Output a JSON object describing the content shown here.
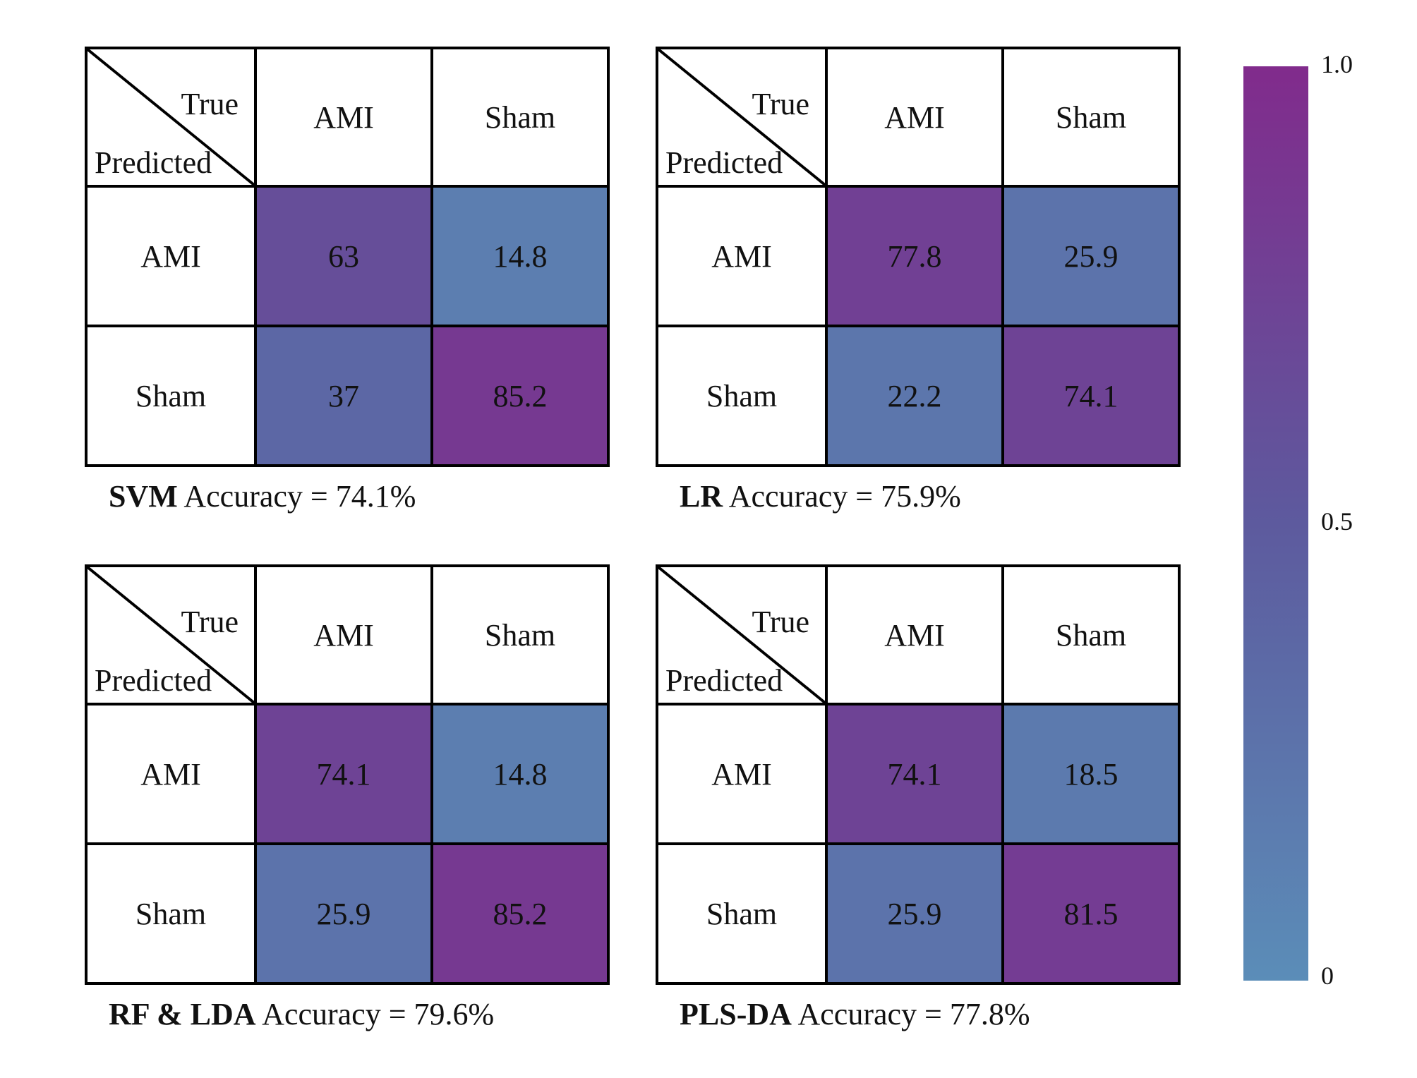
{
  "chart_data": [
    {
      "type": "heatmap",
      "model": "SVM",
      "accuracy_label": "Accuracy = 74.1%",
      "corner_true": "True",
      "corner_predicted": "Predicted",
      "columns": [
        "AMI",
        "Sham"
      ],
      "rows": [
        "AMI",
        "Sham"
      ],
      "values": [
        [
          "63",
          "14.8"
        ],
        [
          "37",
          "85.2"
        ]
      ]
    },
    {
      "type": "heatmap",
      "model": "LR",
      "accuracy_label": "Accuracy = 75.9%",
      "corner_true": "True",
      "corner_predicted": "Predicted",
      "columns": [
        "AMI",
        "Sham"
      ],
      "rows": [
        "AMI",
        "Sham"
      ],
      "values": [
        [
          "77.8",
          "25.9"
        ],
        [
          "22.2",
          "74.1"
        ]
      ]
    },
    {
      "type": "heatmap",
      "model": "RF & LDA",
      "accuracy_label": "Accuracy = 79.6%",
      "corner_true": "True",
      "corner_predicted": "Predicted",
      "columns": [
        "AMI",
        "Sham"
      ],
      "rows": [
        "AMI",
        "Sham"
      ],
      "values": [
        [
          "74.1",
          "14.8"
        ],
        [
          "25.9",
          "85.2"
        ]
      ]
    },
    {
      "type": "heatmap",
      "model": "PLS-DA",
      "accuracy_label": "Accuracy = 77.8%",
      "corner_true": "True",
      "corner_predicted": "Predicted",
      "columns": [
        "AMI",
        "Sham"
      ],
      "rows": [
        "AMI",
        "Sham"
      ],
      "values": [
        [
          "74.1",
          "18.5"
        ],
        [
          "25.9",
          "81.5"
        ]
      ]
    }
  ],
  "colorbar": {
    "ticks": [
      "1.0",
      "0.5",
      "0"
    ],
    "tick_values": [
      1.0,
      0.5,
      0
    ],
    "range": [
      0,
      1
    ],
    "color_low": "#5b8db8",
    "color_mid": "#5d5a9e",
    "color_high": "#812b8c"
  }
}
